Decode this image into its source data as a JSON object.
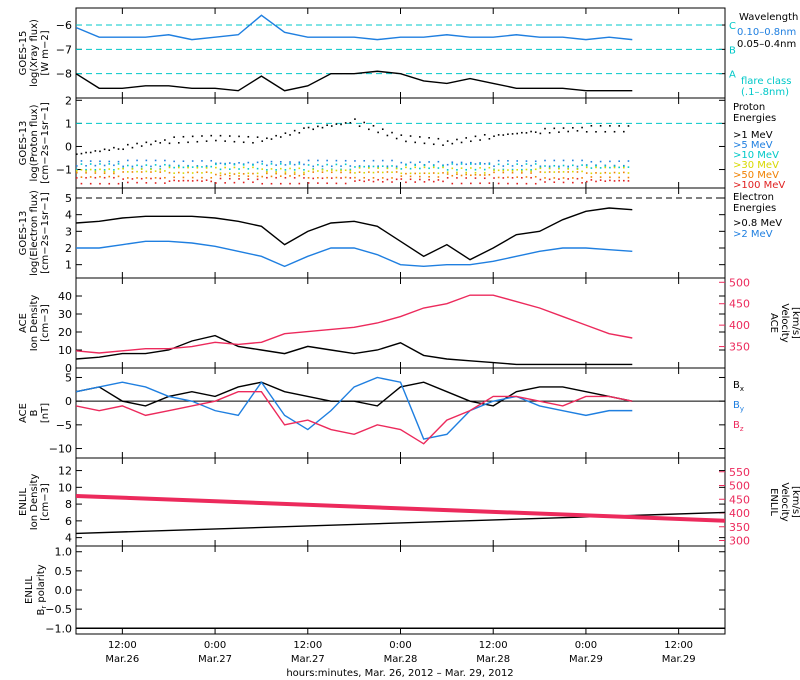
{
  "figure": {
    "xlabel": "hours:minutes, Mar. 26, 2012 – Mar. 29, 2012",
    "x_ticks": [
      {
        "time": "12:00",
        "date": "Mar.26"
      },
      {
        "time": "0:00",
        "date": "Mar.27"
      },
      {
        "time": "12:00",
        "date": "Mar.27"
      },
      {
        "time": "0:00",
        "date": "Mar.28"
      },
      {
        "time": "12:00",
        "date": "Mar.28"
      },
      {
        "time": "0:00",
        "date": "Mar.29"
      },
      {
        "time": "12:00",
        "date": "Mar.29"
      }
    ]
  },
  "colors": {
    "black": "#000000",
    "blue": "#1f7fe0",
    "cyan": "#00c8c8",
    "pink": "#ec2a5c",
    "red": "#e02020",
    "orange": "#f08000",
    "yellow": "#d8d800",
    "green": "#40c040"
  },
  "chart_data": [
    {
      "type": "line",
      "panel": "xray",
      "ylabel": [
        "GOES-15",
        "log(Xray flux)",
        "[W m−2]"
      ],
      "ylim": [
        -9,
        -5.3
      ],
      "yticks": [
        -8,
        -7,
        -6
      ],
      "ytick_labels": [
        "−8",
        "−7",
        "−6"
      ],
      "x_hours": [
        0,
        3,
        6,
        9,
        12,
        15,
        18,
        21,
        24,
        27,
        30,
        33,
        36,
        39,
        42,
        45,
        48,
        51,
        54,
        57,
        60,
        63,
        66,
        69,
        72
      ],
      "legend_title": "Wavelength",
      "series": [
        {
          "name": "0.10–0.8nm",
          "color": "blue",
          "values": [
            -6.1,
            -6.5,
            -6.5,
            -6.5,
            -6.4,
            -6.6,
            -6.5,
            -6.4,
            -5.6,
            -6.3,
            -6.5,
            -6.5,
            -6.5,
            -6.6,
            -6.5,
            -6.5,
            -6.4,
            -6.5,
            -6.5,
            -6.4,
            -6.5,
            -6.5,
            -6.6,
            -6.5,
            -6.6
          ]
        },
        {
          "name": "0.05–0.4nm",
          "color": "black",
          "values": [
            -8,
            -8.6,
            -8.6,
            -8.5,
            -8.5,
            -8.6,
            -8.6,
            -8.7,
            -8.1,
            -8.7,
            -8.5,
            -8,
            -8,
            -7.9,
            -8,
            -8.3,
            -8.4,
            -8.2,
            -8.4,
            -8.6,
            -8.6,
            -8.6,
            -8.7,
            -8.7,
            -8.7
          ]
        }
      ],
      "flare_levels": [
        {
          "label": "C",
          "value": -6
        },
        {
          "label": "B",
          "value": -7
        },
        {
          "label": "A",
          "value": -8
        }
      ],
      "flare_class_label": [
        "flare class",
        "(.1–.8nm)"
      ]
    },
    {
      "type": "scatter",
      "panel": "protons",
      "ylabel": [
        "GOES-13",
        "log(Proton flux)",
        "[cm−2s−1sr−1]"
      ],
      "ylim": [
        -1.8,
        2.1
      ],
      "yticks": [
        -1,
        0,
        1,
        2
      ],
      "ytick_labels": [
        "−1",
        "0",
        "1",
        "2"
      ],
      "reference_line": 1,
      "legend_title": [
        "Proton",
        "Energies"
      ],
      "x_hours": [
        0,
        6,
        12,
        18,
        24,
        30,
        36,
        42,
        48,
        54,
        60,
        66,
        72
      ],
      "series": [
        {
          "name": ">1 MeV",
          "color": "black",
          "values": [
            -0.3,
            0,
            0.3,
            0.4,
            0.3,
            0.8,
            1.1,
            0.4,
            0.2,
            0.5,
            0.7,
            0.8,
            0.8
          ]
        },
        {
          "name": ">5 MeV",
          "color": "blue",
          "values": [
            -0.7,
            -0.7,
            -0.7,
            -0.7,
            -0.7,
            -0.7,
            -0.7,
            -0.7,
            -0.7,
            -0.7,
            -0.7,
            -0.7,
            -0.7
          ]
        },
        {
          "name": ">10 MeV",
          "color": "cyan",
          "values": [
            -0.85,
            -0.85,
            -0.85,
            -0.85,
            -0.85,
            -0.85,
            -0.85,
            -0.85,
            -0.85,
            -0.85,
            -0.85,
            -0.85,
            -0.85
          ]
        },
        {
          "name": ">30 MeV",
          "color": "yellow",
          "values": [
            -1,
            -1,
            -1,
            -1,
            -1,
            -1,
            -1,
            -1,
            -1,
            -1,
            -1,
            -1,
            -1
          ]
        },
        {
          "name": ">50 MeV",
          "color": "orange",
          "values": [
            -1.2,
            -1.2,
            -1.2,
            -1.2,
            -1.2,
            -1.2,
            -1.2,
            -1.2,
            -1.2,
            -1.2,
            -1.2,
            -1.2,
            -1.2
          ]
        },
        {
          "name": ">100 MeV",
          "color": "red",
          "values": [
            -1.45,
            -1.45,
            -1.45,
            -1.45,
            -1.45,
            -1.45,
            -1.45,
            -1.45,
            -1.45,
            -1.45,
            -1.45,
            -1.45,
            -1.45
          ]
        }
      ]
    },
    {
      "type": "line",
      "panel": "electrons",
      "ylabel": [
        "GOES-13",
        "log(Electron flux)",
        "[cm−2s−1sr−1]"
      ],
      "ylim": [
        0.2,
        5.6
      ],
      "yticks": [
        1,
        2,
        3,
        4,
        5
      ],
      "ytick_labels": [
        "1",
        "2",
        "3",
        "4",
        "5"
      ],
      "reference_line": 5,
      "legend_title": [
        "Electron",
        "Energies"
      ],
      "x_hours": [
        0,
        3,
        6,
        9,
        12,
        15,
        18,
        21,
        24,
        27,
        30,
        33,
        36,
        39,
        42,
        45,
        48,
        51,
        54,
        57,
        60,
        63,
        66,
        69,
        72
      ],
      "series": [
        {
          "name": ">0.8 MeV",
          "color": "black",
          "values": [
            3.5,
            3.6,
            3.8,
            3.9,
            3.9,
            3.9,
            3.8,
            3.6,
            3.3,
            2.2,
            3,
            3.5,
            3.6,
            3.3,
            2.4,
            1.5,
            2.2,
            1.3,
            2,
            2.8,
            3,
            3.7,
            4.2,
            4.4,
            4.3
          ]
        },
        {
          "name": ">2 MeV",
          "color": "blue",
          "values": [
            2,
            2,
            2.2,
            2.4,
            2.4,
            2.3,
            2.1,
            1.8,
            1.5,
            0.9,
            1.5,
            2,
            2,
            1.6,
            1,
            0.9,
            1,
            1,
            1.2,
            1.5,
            1.8,
            2,
            2,
            1.9,
            1.8
          ]
        }
      ]
    },
    {
      "type": "line",
      "panel": "ace_plasma",
      "ylabel": [
        "ACE",
        "Ion Density",
        "[cm−3]"
      ],
      "ylim": [
        0,
        50
      ],
      "yticks": [
        0,
        10,
        20,
        30,
        40
      ],
      "ytick_labels": [
        "0",
        "10",
        "20",
        "30",
        "40"
      ],
      "ylabel_right": [
        "ACE",
        "Velocity",
        "[km/s]"
      ],
      "ylim_right": [
        300,
        510
      ],
      "yticks_right": [
        350,
        400,
        450,
        500
      ],
      "ytick_labels_right": [
        "350",
        "400",
        "450",
        "500"
      ],
      "x_hours": [
        0,
        3,
        6,
        9,
        12,
        15,
        18,
        21,
        24,
        27,
        30,
        33,
        36,
        39,
        42,
        45,
        48,
        51,
        54,
        57,
        60,
        63,
        66,
        69,
        72
      ],
      "series": [
        {
          "name": "Ion Density",
          "axis": "left",
          "color": "black",
          "values": [
            5,
            6,
            8,
            8,
            10,
            15,
            18,
            12,
            10,
            8,
            12,
            10,
            8,
            10,
            14,
            7,
            5,
            4,
            3,
            2,
            2,
            2,
            2,
            2,
            2
          ]
        },
        {
          "name": "Velocity",
          "axis": "right",
          "color": "pink",
          "values": [
            340,
            335,
            340,
            345,
            345,
            350,
            360,
            355,
            360,
            380,
            385,
            390,
            395,
            405,
            420,
            440,
            450,
            470,
            470,
            455,
            440,
            420,
            400,
            380,
            370
          ]
        }
      ]
    },
    {
      "type": "line",
      "panel": "ace_mag",
      "ylabel": [
        "ACE",
        "B",
        "[nT]"
      ],
      "ylim": [
        -12,
        7
      ],
      "yticks": [
        -10,
        -5,
        0,
        5
      ],
      "ytick_labels": [
        "−10",
        "−5",
        "0",
        "5"
      ],
      "x_hours": [
        0,
        3,
        6,
        9,
        12,
        15,
        18,
        21,
        24,
        27,
        30,
        33,
        36,
        39,
        42,
        45,
        48,
        51,
        54,
        57,
        60,
        63,
        66,
        69,
        72
      ],
      "series": [
        {
          "name": "Bx",
          "label_main": "B",
          "label_sub": "x",
          "color": "black",
          "values": [
            2,
            3,
            0,
            -1,
            1,
            2,
            1,
            3,
            4,
            2,
            1,
            0,
            0,
            -1,
            3,
            4,
            2,
            0,
            -1,
            2,
            3,
            3,
            2,
            1,
            0
          ]
        },
        {
          "name": "By",
          "label_main": "B",
          "label_sub": "y",
          "color": "blue",
          "values": [
            2,
            3,
            4,
            3,
            1,
            0,
            -2,
            -3,
            4,
            -3,
            -6,
            -2,
            3,
            5,
            4,
            -8,
            -7,
            -2,
            0,
            1,
            -1,
            -2,
            -3,
            -2,
            -2
          ]
        },
        {
          "name": "Bz",
          "label_main": "B",
          "label_sub": "z",
          "color": "pink",
          "values": [
            -1,
            -2,
            -1,
            -3,
            -2,
            -1,
            0,
            2,
            2,
            -5,
            -4,
            -6,
            -7,
            -5,
            -6,
            -9,
            -4,
            -2,
            1,
            1,
            0,
            -1,
            1,
            1,
            0
          ]
        }
      ]
    },
    {
      "type": "line",
      "panel": "enlil_plasma",
      "ylabel": [
        "ENLIL",
        "Ion Density",
        "[cm−3]"
      ],
      "ylim": [
        3,
        13.5
      ],
      "yticks": [
        4,
        6,
        8,
        10,
        12
      ],
      "ytick_labels": [
        "4",
        "6",
        "8",
        "10",
        "12"
      ],
      "ylabel_right": [
        "ENLIL",
        "Velocity",
        "[km/s]"
      ],
      "ylim_right": [
        280,
        600
      ],
      "yticks_right": [
        300,
        350,
        400,
        450,
        500,
        550
      ],
      "ytick_labels_right": [
        "300",
        "350",
        "400",
        "450",
        "500",
        "550"
      ],
      "x_hours": [
        0,
        84
      ],
      "series": [
        {
          "name": "Ion Density",
          "axis": "left",
          "color": "black",
          "values": [
            4.5,
            7
          ]
        },
        {
          "name": "Velocity",
          "axis": "right",
          "color": "pink",
          "values": [
            462,
            372
          ]
        }
      ]
    },
    {
      "type": "line",
      "panel": "enlil_polarity",
      "ylabel": [
        "ENLIL",
        "Br polarity"
      ],
      "ylabel_main": "B",
      "ylabel_sub": "r",
      "ylabel_rest": " polarity",
      "ylim": [
        -1.15,
        1.15
      ],
      "yticks": [
        -1,
        -0.5,
        0,
        0.5,
        1
      ],
      "ytick_labels": [
        "−1.0",
        "−0.5",
        "0.0",
        "0.5",
        "1.0"
      ],
      "x_hours": [
        0,
        84
      ],
      "series": [
        {
          "name": "Br polarity",
          "color": "black",
          "values": [
            -1,
            -1
          ]
        }
      ]
    }
  ]
}
